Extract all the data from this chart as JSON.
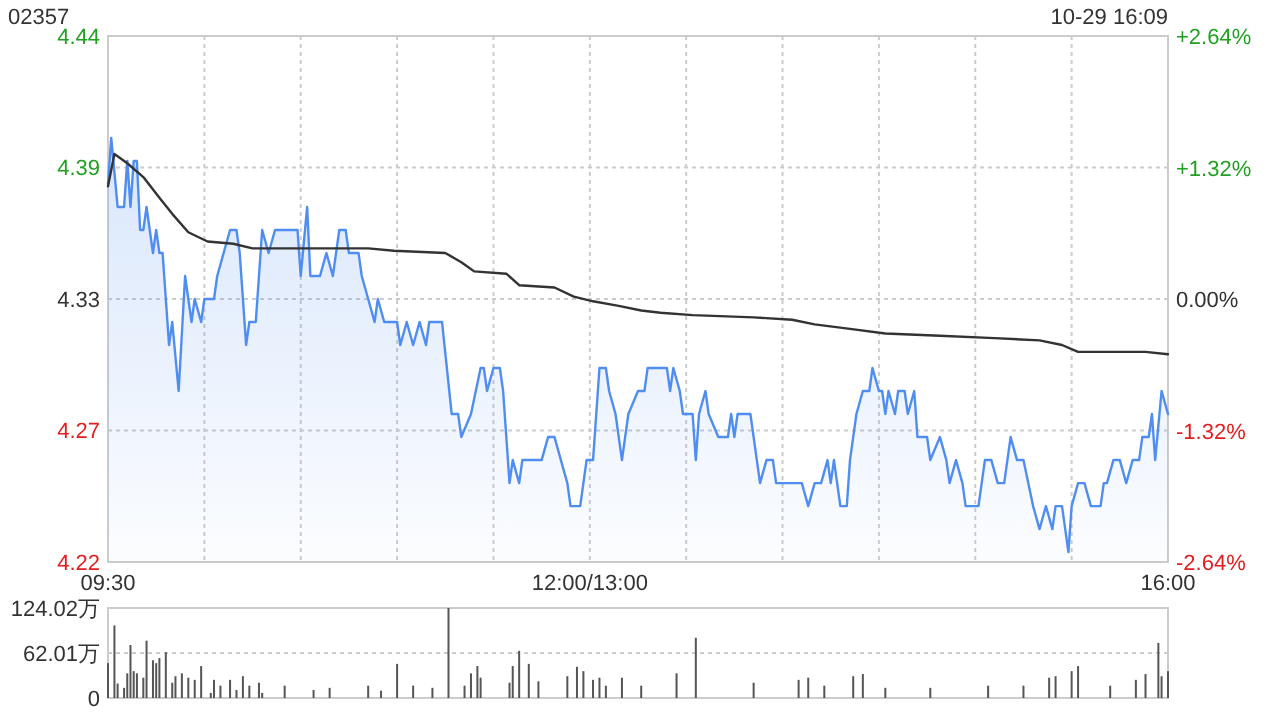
{
  "chart_data": [
    {
      "type": "line",
      "title": "02357",
      "annotations": [
        "10-29 16:09"
      ],
      "categories": [
        "09:30",
        null,
        null,
        null,
        null,
        null,
        null,
        null,
        null,
        null,
        null,
        null,
        null,
        null,
        null,
        null,
        null,
        null,
        null,
        null,
        null,
        null,
        null,
        null,
        null,
        null,
        null,
        null,
        null,
        null,
        null,
        null,
        null,
        null,
        null,
        null,
        null,
        null,
        null,
        null,
        null,
        null,
        null,
        null,
        null,
        null,
        null,
        null,
        null,
        null,
        null,
        null,
        null,
        null,
        null,
        null,
        null,
        null,
        null,
        null,
        null,
        null,
        null,
        null,
        null,
        null,
        null,
        null,
        null,
        null,
        null,
        null,
        null,
        null,
        null,
        null,
        null,
        null,
        null,
        null,
        null,
        null,
        null,
        null,
        null,
        null,
        null,
        null,
        null,
        null,
        null,
        null,
        null,
        null,
        null,
        null,
        null,
        null,
        null,
        null,
        null,
        null,
        null,
        null,
        null,
        null,
        null,
        null,
        null,
        null,
        null,
        null,
        null,
        null,
        null,
        null,
        null,
        null,
        null,
        null,
        null,
        null,
        null,
        null,
        null,
        null,
        null,
        null,
        null,
        null,
        null,
        null,
        null,
        null,
        null,
        null,
        null,
        null,
        null,
        null,
        null,
        null,
        null,
        null,
        null,
        null,
        null,
        null,
        null,
        null,
        "12:00/13:00",
        null,
        null,
        null,
        null,
        null,
        null,
        null,
        null,
        null,
        null,
        null,
        null,
        null,
        null,
        null,
        null,
        null,
        null,
        null,
        null,
        null,
        null,
        null,
        null,
        null,
        null,
        null,
        null,
        null,
        null,
        null,
        null,
        null,
        null,
        null,
        null,
        null,
        null,
        null,
        null,
        null,
        null,
        null,
        null,
        null,
        null,
        null,
        null,
        null,
        null,
        null,
        null,
        null,
        null,
        null,
        null,
        null,
        null,
        null,
        null,
        null,
        null,
        null,
        null,
        null,
        null,
        null,
        null,
        null,
        null,
        null,
        null,
        null,
        null,
        null,
        null,
        null,
        null,
        null,
        null,
        null,
        null,
        null,
        null,
        null,
        null,
        null,
        null,
        null,
        null,
        null,
        null,
        null,
        null,
        null,
        null,
        null,
        null,
        null,
        null,
        null,
        null,
        null,
        null,
        null,
        null,
        null,
        null,
        null,
        null,
        null,
        null,
        null,
        null,
        null,
        null,
        null,
        null,
        null,
        null,
        null,
        null,
        null,
        null,
        null,
        null,
        null,
        null,
        null,
        null,
        null,
        null,
        null,
        null,
        null,
        null,
        null,
        null,
        null,
        null,
        null,
        null,
        null,
        null,
        null,
        null,
        null,
        null,
        null,
        null,
        null,
        null,
        null,
        null,
        null,
        null,
        null,
        null,
        null,
        null,
        null,
        null,
        null,
        null,
        null,
        null,
        null,
        null,
        null,
        null,
        null,
        null,
        null,
        null,
        null,
        null,
        null,
        null,
        null,
        "16:00"
      ],
      "ylim": [
        4.2157,
        4.4443
      ],
      "yticks": [
        {
          "value": 4.2157,
          "label": "4.22"
        },
        {
          "value": 4.2729,
          "label": "4.27"
        },
        4.33,
        {
          "value": 4.3872,
          "label": "4.39"
        },
        {
          "value": 4.4443,
          "label": "4.44"
        }
      ],
      "y2lim": [
        -2.64,
        2.64
      ],
      "y2ticks": [
        {
          "value": -2.64,
          "label": "-2.64%"
        },
        {
          "value": -1.32,
          "label": "-1.32%"
        },
        {
          "value": 0,
          "label": "0.00%"
        },
        {
          "value": 1.32,
          "label": "+1.32%"
        },
        {
          "value": 2.64,
          "label": "+2.64%"
        }
      ],
      "grid": true,
      "series": [
        {
          "type": "area",
          "color": "#4f8ef0",
          "values": [
            4.38,
            4.4,
            null,
            4.37,
            null,
            4.37,
            4.39,
            4.37,
            4.39,
            4.39,
            4.36,
            4.36,
            4.37,
            null,
            4.35,
            4.36,
            4.35,
            4.35,
            null,
            4.31,
            4.32,
            null,
            4.29,
            null,
            4.34,
            null,
            4.32,
            4.33,
            null,
            4.32,
            4.33,
            null,
            null,
            4.33,
            4.34,
            null,
            4.35,
            null,
            4.36,
            null,
            4.36,
            4.35,
            null,
            4.31,
            4.32,
            null,
            4.32,
            null,
            4.36,
            null,
            4.35,
            null,
            4.36,
            null,
            null,
            null,
            null,
            null,
            null,
            4.36,
            4.34,
            null,
            4.37,
            4.34,
            null,
            null,
            4.34,
            null,
            4.35,
            null,
            4.34,
            null,
            4.36,
            null,
            4.36,
            4.35,
            null,
            null,
            4.35,
            4.34,
            null,
            4.33,
            null,
            4.32,
            4.33,
            null,
            4.32,
            null,
            null,
            null,
            4.32,
            4.31,
            null,
            4.32,
            null,
            4.31,
            null,
            4.32,
            null,
            4.31,
            4.32,
            null,
            null,
            null,
            4.32,
            null,
            null,
            4.28,
            null,
            4.28,
            4.27,
            null,
            null,
            4.28,
            null,
            null,
            4.3,
            4.3,
            4.29,
            null,
            4.3,
            null,
            4.3,
            4.29,
            null,
            4.25,
            4.26,
            null,
            4.25,
            4.26,
            null,
            null,
            null,
            null,
            null,
            4.26,
            null,
            4.27,
            null,
            4.27,
            null,
            4.26,
            null,
            4.25,
            4.24,
            null,
            null,
            4.24,
            null,
            4.26,
            null,
            4.26,
            null,
            4.3,
            null,
            4.3,
            4.29,
            null,
            4.28,
            null,
            4.26,
            null,
            4.28,
            null,
            null,
            4.29,
            null,
            4.29,
            4.3,
            null,
            null,
            null,
            null,
            null,
            4.3,
            4.29,
            4.3,
            null,
            4.29,
            4.28,
            null,
            null,
            4.28,
            4.26,
            4.28,
            null,
            4.29,
            4.28,
            null,
            null,
            4.27,
            null,
            null,
            4.27,
            4.28,
            4.27,
            4.28,
            null,
            null,
            null,
            4.28,
            null,
            4.26,
            4.25,
            null,
            4.26,
            null,
            4.26,
            4.25,
            null,
            null,
            null,
            null,
            null,
            null,
            null,
            4.25,
            null,
            4.24,
            null,
            4.25,
            null,
            4.25,
            null,
            4.26,
            4.25,
            4.26,
            null,
            4.24,
            null,
            4.24,
            4.26,
            null,
            4.28,
            null,
            4.29,
            null,
            4.29,
            4.3,
            null,
            4.29,
            4.29,
            4.28,
            4.29,
            null,
            4.28,
            4.29,
            null,
            4.29,
            4.28,
            null,
            4.29,
            4.27,
            null,
            null,
            4.27,
            4.26,
            null,
            null,
            4.27,
            null,
            4.26,
            4.25,
            null,
            4.26,
            null,
            4.25,
            4.24,
            null,
            null,
            null,
            4.24,
            null,
            4.26,
            null,
            4.26,
            null,
            4.25,
            null,
            4.25,
            4.26,
            4.27,
            null,
            4.26,
            null,
            4.26,
            null,
            null,
            4.24,
            null,
            4.23,
            null,
            4.24,
            null,
            4.23,
            4.24,
            null,
            4.24,
            null,
            4.22,
            4.24,
            null,
            4.25,
            null,
            4.25,
            null,
            4.24,
            null,
            null,
            4.24,
            4.25,
            4.25,
            null,
            4.26,
            null,
            4.26,
            null,
            4.25,
            null,
            4.26,
            null,
            4.26,
            4.27,
            null,
            4.27,
            4.28,
            4.26,
            null,
            4.29,
            null,
            4.28
          ]
        },
        {
          "type": "line",
          "color": "#333333",
          "values": [
            4.379,
            null,
            4.393,
            null,
            null,
            null,
            4.389,
            null,
            null,
            null,
            null,
            4.383,
            null,
            null,
            null,
            null,
            4.374,
            null,
            null,
            null,
            4.367,
            null,
            null,
            null,
            null,
            4.359,
            null,
            null,
            null,
            null,
            null,
            4.355,
            null,
            null,
            null,
            null,
            null,
            null,
            null,
            4.354,
            null,
            null,
            null,
            null,
            null,
            4.352,
            null,
            null,
            null,
            null,
            null,
            null,
            null,
            null,
            null,
            null,
            null,
            null,
            null,
            null,
            4.352,
            null,
            null,
            null,
            null,
            null,
            null,
            null,
            null,
            null,
            null,
            null,
            null,
            null,
            null,
            null,
            null,
            null,
            null,
            null,
            null,
            4.352,
            null,
            null,
            null,
            null,
            null,
            null,
            null,
            4.351,
            null,
            null,
            null,
            null,
            null,
            null,
            null,
            null,
            null,
            null,
            null,
            null,
            null,
            null,
            null,
            4.35,
            null,
            null,
            null,
            null,
            4.346,
            null,
            null,
            null,
            4.342,
            null,
            null,
            null,
            null,
            null,
            null,
            null,
            null,
            null,
            4.341,
            null,
            null,
            null,
            4.336,
            null,
            null,
            null,
            null,
            null,
            null,
            null,
            null,
            null,
            null,
            4.335,
            null,
            null,
            null,
            null,
            null,
            4.331,
            null,
            null,
            null,
            null,
            null,
            4.329,
            null,
            null,
            null,
            null,
            null,
            null,
            null,
            4.327,
            null,
            null,
            null,
            null,
            null,
            null,
            4.325,
            null,
            null,
            null,
            null,
            null,
            4.324,
            null,
            null,
            null,
            null,
            null,
            null,
            null,
            null,
            null,
            4.323,
            null,
            null,
            null,
            null,
            null,
            null,
            null,
            null,
            null,
            null,
            null,
            null,
            null,
            null,
            null,
            null,
            null,
            null,
            4.322,
            null,
            null,
            null,
            null,
            null,
            null,
            null,
            null,
            null,
            null,
            null,
            4.321,
            null,
            null,
            null,
            null,
            null,
            null,
            4.319,
            null,
            null,
            null,
            null,
            null,
            null,
            null,
            null,
            null,
            null,
            4.317,
            null,
            null,
            null,
            null,
            null,
            null,
            null,
            null,
            null,
            null,
            4.315,
            null,
            null,
            null,
            null,
            null,
            null,
            null,
            null,
            null,
            null,
            null,
            null,
            null,
            null,
            null,
            null,
            4.314,
            null,
            null,
            null,
            null,
            null,
            null,
            null,
            null,
            null,
            null,
            null,
            null,
            null,
            null,
            null,
            null,
            4.313,
            null,
            null,
            null,
            null,
            null,
            null,
            null,
            null,
            null,
            null,
            null,
            null,
            null,
            4.312,
            null,
            null,
            null,
            null,
            null,
            null,
            4.31,
            null,
            null,
            null,
            null,
            4.307,
            null,
            null,
            null,
            null,
            null,
            null,
            null,
            null,
            null,
            null,
            null,
            null,
            null,
            null,
            null,
            null,
            null,
            null,
            null,
            null,
            4.307,
            null,
            null,
            null,
            null,
            null,
            null,
            4.306
          ]
        }
      ]
    },
    {
      "type": "bar",
      "grid": "y",
      "color": "#555555",
      "categories": [
        null,
        null,
        null,
        null,
        null,
        null,
        null,
        null,
        null,
        null,
        null,
        null,
        null,
        null,
        null,
        null,
        null,
        null,
        null,
        null,
        null,
        null,
        null,
        null,
        null,
        null,
        null,
        null,
        null,
        null,
        null,
        null,
        null,
        null,
        null,
        null,
        null,
        null,
        null,
        null,
        null,
        null,
        null,
        null,
        null,
        null,
        null,
        null,
        null,
        null,
        null,
        null,
        null,
        null,
        null,
        null,
        null,
        null,
        null,
        null,
        null,
        null,
        null,
        null,
        null,
        null,
        null,
        null,
        null,
        null,
        null,
        null,
        null,
        null,
        null,
        null,
        null,
        null,
        null,
        null,
        null,
        null,
        null,
        null,
        null,
        null,
        null,
        null,
        null,
        null,
        null,
        null,
        null,
        null,
        null,
        null,
        null,
        null,
        null,
        null,
        null,
        null,
        null,
        null,
        null,
        null,
        null,
        null,
        null,
        null,
        null,
        null,
        null,
        null,
        null,
        null,
        null,
        null,
        null,
        null,
        null,
        null,
        null,
        null,
        null,
        null,
        null,
        null,
        null,
        null,
        null,
        null,
        null,
        null,
        null,
        null,
        null,
        null,
        null,
        null,
        null,
        null,
        null,
        null,
        null,
        null,
        null,
        null,
        null,
        null,
        null,
        null,
        null,
        null,
        null,
        null,
        null,
        null,
        null,
        null,
        null,
        null,
        null,
        null,
        null,
        null,
        null,
        null,
        null,
        null,
        null,
        null,
        null,
        null,
        null,
        null,
        null,
        null,
        null,
        null,
        null,
        null,
        null,
        null,
        null,
        null,
        null,
        null,
        null,
        null,
        null,
        null,
        null,
        null,
        null,
        null,
        null,
        null,
        null,
        null,
        null,
        null,
        null,
        null,
        null,
        null,
        null,
        null,
        null,
        null,
        null,
        null,
        null,
        null,
        null,
        null,
        null,
        null,
        null,
        null,
        null,
        null,
        null,
        null,
        null,
        null,
        null,
        null,
        null,
        null,
        null,
        null,
        null,
        null,
        null,
        null,
        null,
        null,
        null,
        null,
        null,
        null,
        null,
        null,
        null,
        null,
        null,
        null,
        null,
        null,
        null,
        null,
        null,
        null,
        null,
        null,
        null,
        null,
        null,
        null,
        null,
        null,
        null,
        null,
        null,
        null,
        null,
        null,
        null,
        null,
        null,
        null,
        null,
        null,
        null,
        null,
        null,
        null,
        null,
        null,
        null,
        null,
        null,
        null,
        null,
        null,
        null,
        null,
        null,
        null,
        null,
        null,
        null,
        null,
        null,
        null,
        null,
        null,
        null,
        null,
        null,
        null,
        null,
        null,
        null,
        null,
        null,
        null,
        null,
        null,
        null,
        null,
        null,
        null,
        null,
        null,
        null,
        null,
        null,
        null,
        null,
        null,
        null,
        null,
        null,
        null,
        null,
        null,
        null,
        null,
        null
      ],
      "ylim": [
        0,
        124.02
      ],
      "yticks": [
        0,
        {
          "value": 62.01,
          "label": "62.01万"
        },
        {
          "value": 124.02,
          "label": "124.02万"
        }
      ],
      "values": [
        48,
        null,
        100,
        20,
        null,
        14,
        34,
        73,
        37,
        34,
        null,
        28,
        79,
        null,
        52,
        48,
        55,
        null,
        63,
        null,
        21,
        30,
        null,
        34,
        null,
        28,
        null,
        25,
        null,
        44,
        null,
        null,
        7,
        25,
        null,
        17,
        null,
        null,
        25,
        null,
        11,
        null,
        30,
        null,
        17,
        null,
        null,
        21,
        7,
        null,
        null,
        null,
        null,
        null,
        null,
        17,
        null,
        null,
        null,
        null,
        null,
        null,
        null,
        null,
        11,
        null,
        null,
        null,
        null,
        14,
        null,
        null,
        null,
        null,
        null,
        null,
        null,
        null,
        null,
        null,
        null,
        17,
        null,
        null,
        null,
        10,
        null,
        null,
        null,
        null,
        47,
        null,
        null,
        null,
        null,
        17,
        null,
        null,
        null,
        null,
        null,
        14,
        null,
        null,
        null,
        null,
        124,
        null,
        null,
        null,
        null,
        17,
        null,
        34,
        null,
        44,
        28,
        null,
        null,
        null,
        null,
        null,
        null,
        null,
        null,
        21,
        44,
        null,
        65,
        null,
        null,
        47,
        null,
        null,
        23,
        null,
        null,
        null,
        null,
        null,
        null,
        null,
        null,
        30,
        null,
        null,
        43,
        null,
        37,
        null,
        null,
        25,
        null,
        28,
        null,
        17,
        null,
        null,
        null,
        null,
        28,
        null,
        null,
        null,
        null,
        null,
        17,
        null,
        null,
        null,
        null,
        null,
        null,
        null,
        null,
        null,
        null,
        34,
        null,
        null,
        null,
        null,
        null,
        83,
        null,
        null,
        null,
        null,
        null,
        null,
        null,
        null,
        null,
        null,
        null,
        null,
        null,
        null,
        null,
        null,
        null,
        21,
        null,
        null,
        null,
        null,
        null,
        null,
        null,
        null,
        null,
        null,
        null,
        null,
        null,
        25,
        null,
        null,
        28,
        null,
        null,
        null,
        null,
        17,
        null,
        null,
        null,
        null,
        null,
        null,
        null,
        null,
        30,
        null,
        null,
        33,
        null,
        null,
        null,
        null,
        null,
        null,
        14,
        null,
        null,
        null,
        null,
        null,
        null,
        null,
        null,
        null,
        null,
        null,
        null,
        null,
        14,
        null,
        null,
        null,
        null,
        null,
        null,
        null,
        null,
        null,
        null,
        null,
        null,
        null,
        null,
        null,
        null,
        null,
        17,
        null,
        null,
        null,
        null,
        null,
        null,
        null,
        null,
        null,
        null,
        17,
        null,
        null,
        null,
        null,
        null,
        null,
        null,
        28,
        null,
        30,
        null,
        null,
        null,
        null,
        37,
        null,
        44,
        null,
        null,
        null,
        null,
        null,
        null,
        null,
        null,
        null,
        17,
        null,
        null,
        null,
        null,
        null,
        null,
        null,
        25,
        null,
        null,
        33,
        null,
        null,
        null,
        76,
        30,
        null,
        37
      ]
    }
  ]
}
